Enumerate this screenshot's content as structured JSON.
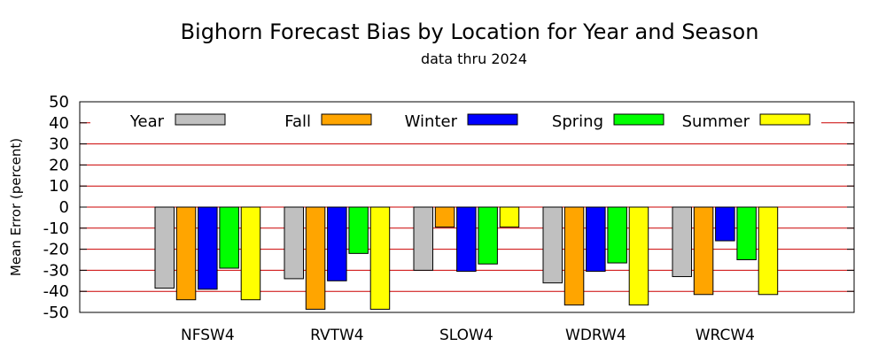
{
  "chart_data": {
    "type": "bar",
    "title": "Bighorn Forecast Bias by Location for Year and Season",
    "subtitle": "data thru 2024",
    "xlabel": "",
    "ylabel": "Mean Error (percent)",
    "ylim": [
      -50,
      50
    ],
    "yticks": [
      "50",
      "40",
      "30",
      "20",
      "10",
      "0",
      "-10",
      "-20",
      "-30",
      "-40",
      "-50"
    ],
    "grid": true,
    "legend_position": "top",
    "categories": [
      "NFSW4",
      "RVTW4",
      "SLOW4",
      "WDRW4",
      "WRCW4"
    ],
    "series": [
      {
        "name": "Year",
        "color": "#c0c0c0",
        "values": [
          -38.5,
          -34,
          -30,
          -36,
          -33
        ]
      },
      {
        "name": "Fall",
        "color": "#ffa500",
        "values": [
          -44,
          -48.5,
          -9.5,
          -46.5,
          -41.5
        ]
      },
      {
        "name": "Winter",
        "color": "#0000ff",
        "values": [
          -39,
          -35,
          -30.5,
          -30.5,
          -16
        ]
      },
      {
        "name": "Spring",
        "color": "#00ff00",
        "values": [
          -29,
          -22,
          -27,
          -26.5,
          -25
        ]
      },
      {
        "name": "Summer",
        "color": "#ffff00",
        "values": [
          -44,
          -48.5,
          -9.5,
          -46.5,
          -41.5
        ]
      }
    ],
    "gridline_color": "#cc0000"
  }
}
